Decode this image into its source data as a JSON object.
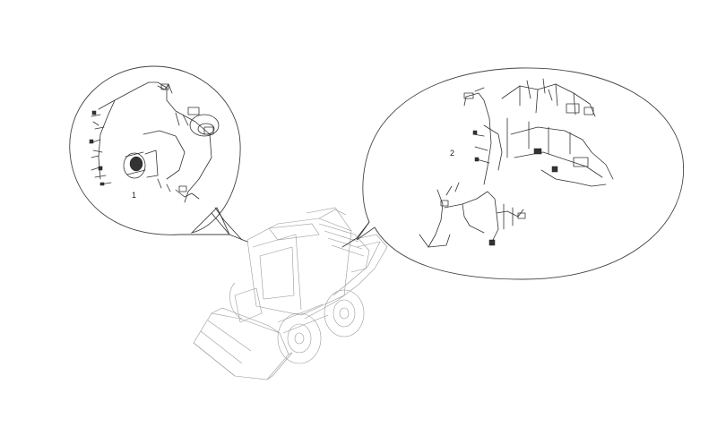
{
  "diagram": {
    "callouts": [
      {
        "id": "callout-1",
        "label": "1"
      },
      {
        "id": "callout-2",
        "label": "2"
      }
    ]
  }
}
